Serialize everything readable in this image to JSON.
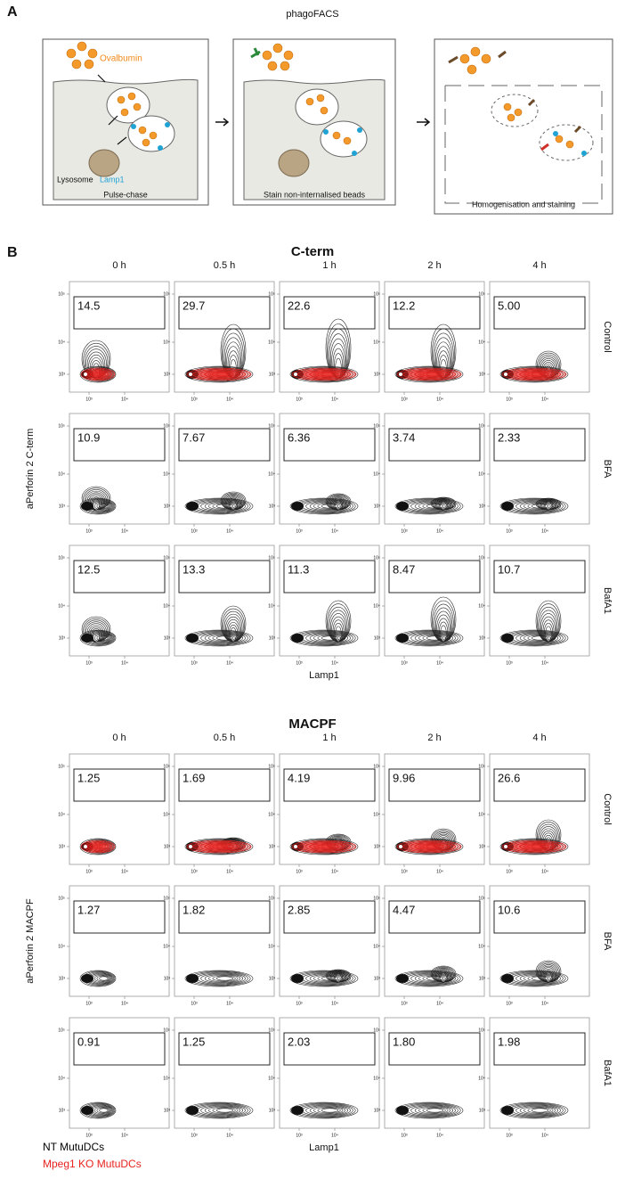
{
  "panel_a": {
    "label": "A",
    "title": "phagoFACS",
    "labels": {
      "ovalbumin": "Ovalbumin",
      "lysosome": "Lysosome",
      "lamp1": "Lamp1"
    },
    "steps": [
      "Pulse-chase",
      "Stain non-internalised beads",
      "Homogenisation and staining"
    ]
  },
  "panel_b": {
    "label": "B",
    "axis_ticks": [
      "10³",
      "10⁴",
      "10⁵"
    ],
    "legend": [
      {
        "name": "NT MutuDCs",
        "color": "#000000"
      },
      {
        "name": "Mpeg1 KO MutuDCs",
        "color": "#e8231f"
      }
    ],
    "sections": [
      {
        "title": "C-term",
        "timepoints": [
          "0 h",
          "0.5 h",
          "1 h",
          "2 h",
          "4 h"
        ],
        "conditions": [
          "Control",
          "BFA",
          "BafA1"
        ],
        "y_label": "aPerforin 2 C-term",
        "x_label": "Lamp1",
        "gate_values": [
          [
            "14.5",
            "29.7",
            "22.6",
            "12.2",
            "5.00"
          ],
          [
            "10.9",
            "7.67",
            "6.36",
            "3.74",
            "2.33"
          ],
          [
            "12.5",
            "13.3",
            "11.3",
            "8.47",
            "10.7"
          ]
        ]
      },
      {
        "title": "MACPF",
        "timepoints": [
          "0 h",
          "0.5 h",
          "1 h",
          "2 h",
          "4 h"
        ],
        "conditions": [
          "Control",
          "BFA",
          "BafA1"
        ],
        "y_label": "aPerforin 2 MACPF",
        "x_label": "Lamp1",
        "gate_values": [
          [
            "1.25",
            "1.69",
            "4.19",
            "9.96",
            "26.6"
          ],
          [
            "1.27",
            "1.82",
            "2.85",
            "4.47",
            "10.6"
          ],
          [
            "0.91",
            "1.25",
            "2.03",
            "1.80",
            "1.98"
          ]
        ]
      }
    ]
  }
}
